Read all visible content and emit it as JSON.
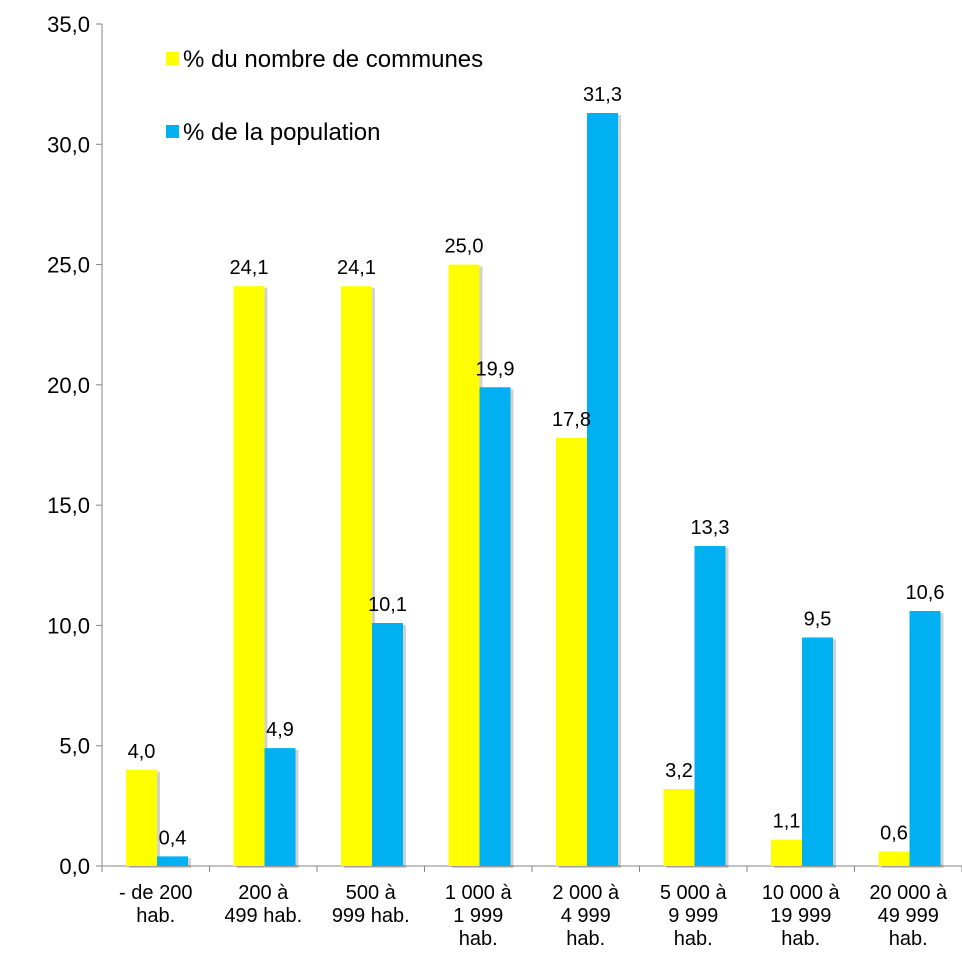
{
  "chart_data": {
    "type": "bar",
    "categories": [
      [
        "- de 200",
        "hab."
      ],
      [
        "200 à",
        "499 hab."
      ],
      [
        "500 à",
        "999 hab."
      ],
      [
        "1 000 à",
        "1 999",
        "hab."
      ],
      [
        "2 000 à",
        "4 999",
        "hab."
      ],
      [
        "5 000 à",
        "9 999",
        "hab."
      ],
      [
        "10 000 à",
        "19 999",
        "hab."
      ],
      [
        "20 000 à",
        "49 999",
        "hab."
      ]
    ],
    "series": [
      {
        "name": "% du nombre de communes",
        "color": "#FFFF00",
        "values": [
          4.0,
          24.1,
          24.1,
          25.0,
          17.8,
          3.2,
          1.1,
          0.6
        ],
        "labels": [
          "4,0",
          "24,1",
          "24,1",
          "25,0",
          "17,8",
          "3,2",
          "1,1",
          "0,6"
        ]
      },
      {
        "name": "% de la population",
        "color": "#00B0F0",
        "values": [
          0.4,
          4.9,
          10.1,
          19.9,
          31.3,
          13.3,
          9.5,
          10.6
        ],
        "labels": [
          "0,4",
          "4,9",
          "10,1",
          "19,9",
          "31,3",
          "13,3",
          "9,5",
          "10,6"
        ]
      }
    ],
    "ylim": [
      0,
      35
    ],
    "yticks": [
      0,
      5,
      10,
      15,
      20,
      25,
      30,
      35
    ],
    "ytick_labels": [
      "0,0",
      "5,0",
      "10,0",
      "15,0",
      "20,0",
      "25,0",
      "30,0",
      "35,0"
    ],
    "grid": false,
    "legend_position": "top-left",
    "title": "",
    "xlabel": "",
    "ylabel": ""
  }
}
